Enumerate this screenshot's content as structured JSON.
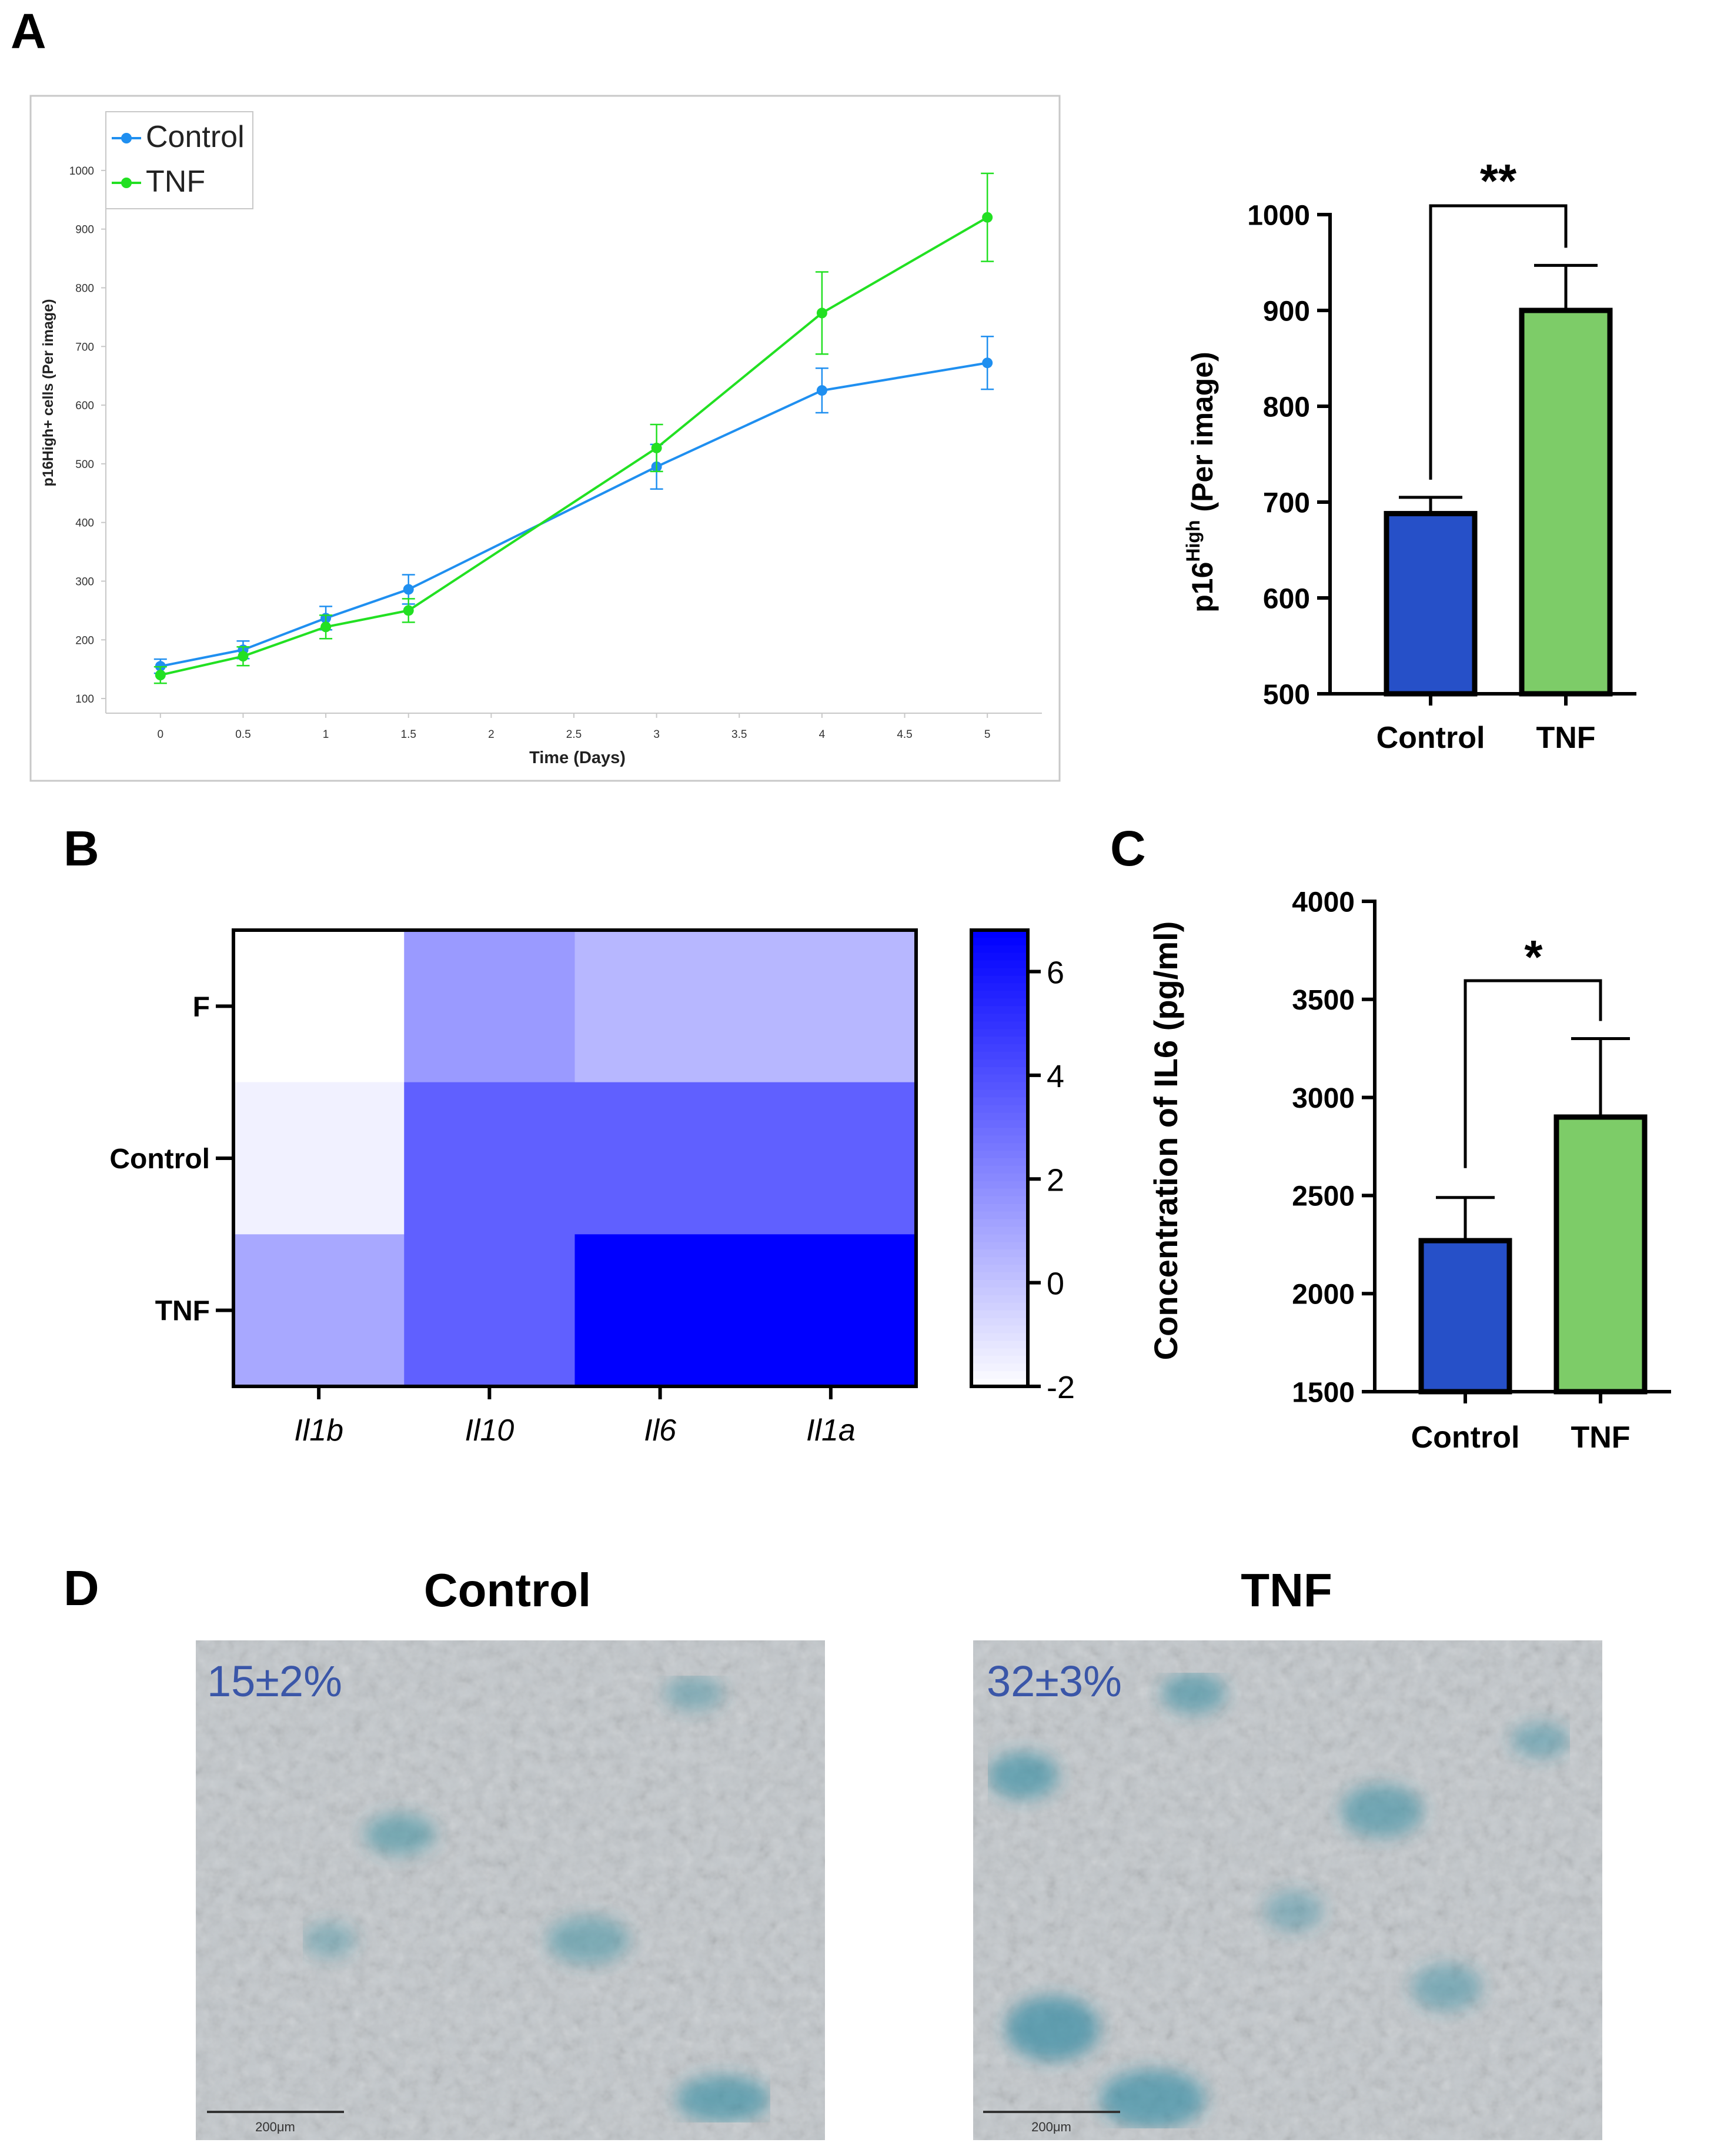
{
  "panels": {
    "a": "A",
    "b": "B",
    "c": "C",
    "d": "D"
  },
  "chart_data": [
    {
      "id": "A-line",
      "type": "line",
      "xlabel": "Time (Days)",
      "ylabel": "p16High+ cells (Per image)",
      "xticks": [
        "0",
        "0.5",
        "1",
        "1.5",
        "2",
        "2.5",
        "3",
        "3.5",
        "4",
        "4.5",
        "5"
      ],
      "yticks": [
        "100",
        "200",
        "300",
        "400",
        "500",
        "600",
        "700",
        "800",
        "900",
        "1000"
      ],
      "xlim": [
        -0.33,
        5.33
      ],
      "ylim": [
        75,
        1060
      ],
      "legend": "top-left",
      "series": [
        {
          "name": "Control",
          "color": "#1f8ff0",
          "x": [
            0,
            0.5,
            1,
            1.5,
            3,
            4,
            5
          ],
          "y": [
            155,
            183,
            237,
            286,
            495,
            625,
            672
          ],
          "err": [
            12,
            15,
            20,
            25,
            38,
            38,
            45
          ]
        },
        {
          "name": "TNF",
          "color": "#22e022",
          "x": [
            0,
            0.5,
            1,
            1.5,
            3,
            4,
            5
          ],
          "y": [
            140,
            172,
            222,
            250,
            527,
            757,
            920
          ],
          "err": [
            14,
            16,
            20,
            20,
            40,
            70,
            75
          ]
        }
      ]
    },
    {
      "id": "A-bar",
      "type": "bar",
      "ylabel_main": "p16",
      "ylabel_sup": "High",
      "ylabel_rest": " (Per image)",
      "categories": [
        "Control",
        "TNF"
      ],
      "values": [
        688,
        900
      ],
      "err": [
        17,
        47
      ],
      "colors": [
        "#2650c8",
        "#7dcc68"
      ],
      "ylim": [
        500,
        1000
      ],
      "yticks": [
        "500",
        "600",
        "700",
        "800",
        "900",
        "1000"
      ],
      "significance": "**"
    },
    {
      "id": "B-heatmap",
      "type": "heatmap",
      "rows": [
        "F",
        "Control",
        "TNF"
      ],
      "cols": [
        "Il1b",
        "Il10",
        "Il6",
        "Il1a"
      ],
      "values": [
        [
          -2,
          1.5,
          0.5,
          0.5
        ],
        [
          -1.5,
          3.5,
          3.5,
          3.5
        ],
        [
          1,
          3.5,
          7,
          7
        ]
      ],
      "colorbar_min": -2,
      "colorbar_max": 6.8,
      "colorbar_ticks": [
        "6",
        "4",
        "2",
        "0",
        "-2"
      ],
      "colorbar_values": [
        6,
        4,
        2,
        0,
        -2
      ],
      "color_low": "#ffffff",
      "color_high": "#0000ff"
    },
    {
      "id": "C-bar",
      "type": "bar",
      "ylabel": "Concentration of IL6 (pg/ml)",
      "categories": [
        "Control",
        "TNF"
      ],
      "values": [
        2270,
        2900
      ],
      "err": [
        220,
        400
      ],
      "colors": [
        "#2650c8",
        "#7dcc68"
      ],
      "ylim": [
        1500,
        4000
      ],
      "yticks": [
        "1500",
        "2000",
        "2500",
        "3000",
        "3500",
        "4000"
      ],
      "significance": "*"
    }
  ],
  "micrographs": [
    {
      "title": "Control",
      "label": "15±2%",
      "scale": "200μm"
    },
    {
      "title": "TNF",
      "label": "32±3%",
      "scale": "200μm"
    }
  ]
}
